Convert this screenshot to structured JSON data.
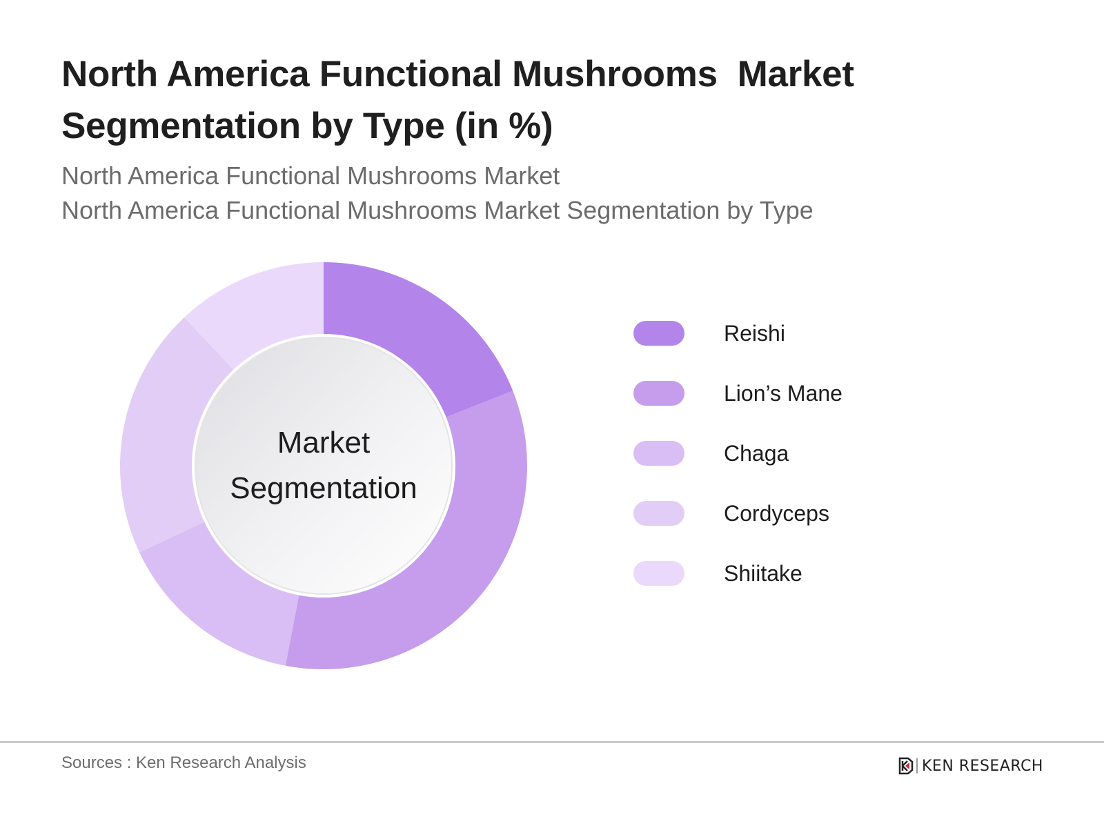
{
  "header": {
    "title_line1": "North America Functional Mushrooms  Market",
    "title_line2": "Segmentation by Type (in %)",
    "subtitle_line1": "North America Functional Mushrooms Market",
    "subtitle_line2": "North America Functional Mushrooms Market Segmentation by Type"
  },
  "donut": {
    "center_line1": "Market",
    "center_line2": "Segmentation"
  },
  "legend": {
    "items": [
      {
        "label": "Reishi",
        "color": "#b384ea"
      },
      {
        "label": "Lion’s Mane",
        "color": "#c59dec"
      },
      {
        "label": "Chaga",
        "color": "#d9bdf5"
      },
      {
        "label": "Cordyceps",
        "color": "#e2cdf6"
      },
      {
        "label": "Shiitake",
        "color": "#ead9fa"
      }
    ]
  },
  "footer": {
    "source": "Sources : Ken Research Analysis",
    "logo_text": "KEN RESEARCH"
  },
  "chart_data": {
    "type": "pie",
    "subtype": "donut",
    "title": "North America Functional Mushrooms  Market Segmentation by Type (in %)",
    "subtitle": "North America Functional Mushrooms Market / North America Functional Mushrooms Market Segmentation by Type",
    "center_text": "Market Segmentation",
    "categories": [
      "Reishi",
      "Lion’s Mane",
      "Chaga",
      "Cordyceps",
      "Shiitake"
    ],
    "values": [
      19,
      34,
      15,
      20,
      12
    ],
    "colors": [
      "#b384ea",
      "#c59dec",
      "#d9bdf5",
      "#e2cdf6",
      "#ead9fa"
    ],
    "unit": "%",
    "start_angle": "12 o'clock, clockwise",
    "legend_position": "right",
    "data_labels": false
  }
}
